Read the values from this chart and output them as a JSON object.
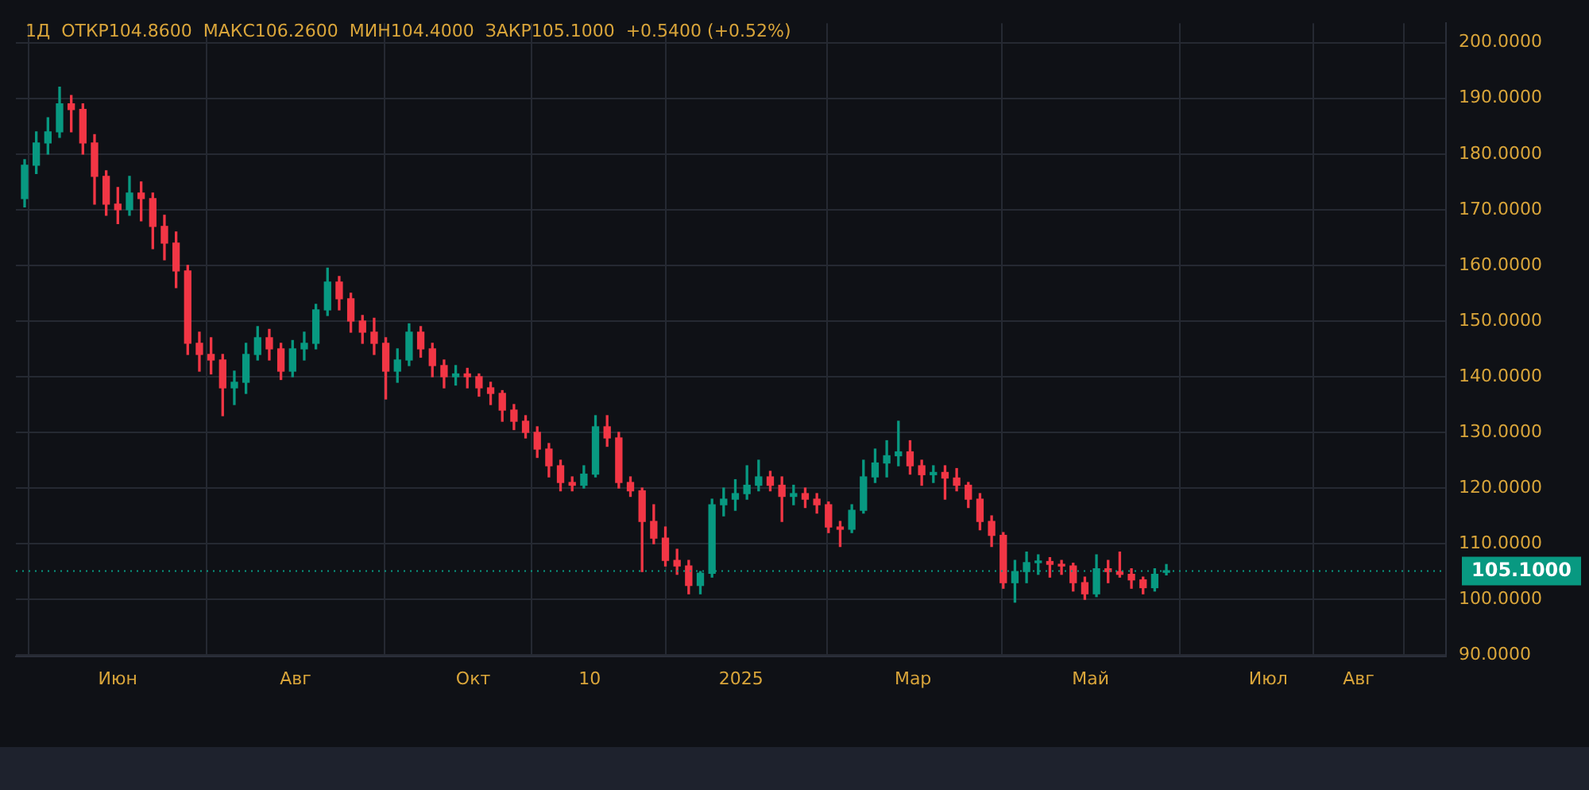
{
  "chart_data": {
    "type": "candlestick",
    "title": "1Д  ОТКР104.8600  МАКС106.2600  МИН104.4000  ЗАКР105.1000  +0.5400 (+0.52%)",
    "x": [
      "2024-04-30",
      "2024-05-04",
      "2024-05-08",
      "2024-05-12",
      "2024-05-16",
      "2024-05-20",
      "2024-05-24",
      "2024-05-28",
      "2024-06-01",
      "2024-06-05",
      "2024-06-09",
      "2024-06-13",
      "2024-06-17",
      "2024-06-21",
      "2024-06-25",
      "2024-06-29",
      "2024-07-03",
      "2024-07-07",
      "2024-07-11",
      "2024-07-15",
      "2024-07-19",
      "2024-07-23",
      "2024-07-27",
      "2024-07-31",
      "2024-08-04",
      "2024-08-08",
      "2024-08-12",
      "2024-08-16",
      "2024-08-20",
      "2024-08-24",
      "2024-08-28",
      "2024-09-01",
      "2024-09-05",
      "2024-09-09",
      "2024-09-13",
      "2024-09-17",
      "2024-09-21",
      "2024-09-25",
      "2024-09-29",
      "2024-10-03",
      "2024-10-07",
      "2024-10-11",
      "2024-10-15",
      "2024-10-19",
      "2024-10-23",
      "2024-10-27",
      "2024-10-31",
      "2024-11-04",
      "2024-11-08",
      "2024-11-12",
      "2024-11-16",
      "2024-11-20",
      "2024-11-24",
      "2024-11-28",
      "2024-12-02",
      "2024-12-06",
      "2024-12-10",
      "2024-12-14",
      "2024-12-18",
      "2024-12-22",
      "2024-12-26",
      "2024-12-30",
      "2025-01-03",
      "2025-01-07",
      "2025-01-11",
      "2025-01-15",
      "2025-01-19",
      "2025-01-23",
      "2025-01-27",
      "2025-01-31",
      "2025-02-04",
      "2025-02-08",
      "2025-02-12",
      "2025-02-16",
      "2025-02-20",
      "2025-02-24",
      "2025-02-28",
      "2025-03-04",
      "2025-03-08",
      "2025-03-12",
      "2025-03-16",
      "2025-03-20",
      "2025-03-24",
      "2025-03-28",
      "2025-04-01",
      "2025-04-05",
      "2025-04-09",
      "2025-04-13",
      "2025-04-17",
      "2025-04-21",
      "2025-04-25",
      "2025-04-29",
      "2025-05-03",
      "2025-05-07",
      "2025-05-11",
      "2025-05-15",
      "2025-05-19",
      "2025-05-23",
      "2025-05-27"
    ],
    "ohlc": [
      [
        172,
        179,
        170.5,
        178
      ],
      [
        178,
        184,
        176.5,
        182
      ],
      [
        182,
        186.5,
        180,
        184
      ],
      [
        184,
        192,
        183,
        189
      ],
      [
        189,
        190.5,
        184,
        188
      ],
      [
        188,
        189,
        180,
        182
      ],
      [
        182,
        183.5,
        171,
        176
      ],
      [
        176,
        177,
        169,
        171
      ],
      [
        171,
        174,
        167.5,
        170
      ],
      [
        170,
        176,
        169,
        173
      ],
      [
        173,
        175,
        168,
        172
      ],
      [
        172,
        173,
        163,
        167
      ],
      [
        167,
        169,
        161,
        164
      ],
      [
        164,
        166,
        156,
        159
      ],
      [
        159,
        160,
        144,
        146
      ],
      [
        146,
        148,
        141,
        144
      ],
      [
        144,
        147,
        140.5,
        143
      ],
      [
        143,
        144,
        133,
        138
      ],
      [
        138,
        141,
        135,
        139
      ],
      [
        139,
        146,
        137,
        144
      ],
      [
        144,
        149,
        143,
        147
      ],
      [
        147,
        148.5,
        143,
        145
      ],
      [
        145,
        146,
        139.5,
        141
      ],
      [
        141,
        146.5,
        140,
        145
      ],
      [
        145,
        148,
        143,
        146
      ],
      [
        146,
        153,
        145,
        152
      ],
      [
        152,
        159.5,
        151,
        157
      ],
      [
        157,
        158,
        152,
        154
      ],
      [
        154,
        155,
        148,
        150
      ],
      [
        150,
        151,
        146,
        148
      ],
      [
        148,
        150.5,
        144,
        146
      ],
      [
        146,
        147,
        136,
        141
      ],
      [
        141,
        145,
        139,
        143
      ],
      [
        143,
        149.5,
        142,
        148
      ],
      [
        148,
        149,
        143.5,
        145
      ],
      [
        145,
        146,
        140,
        142
      ],
      [
        142,
        143,
        138,
        140
      ],
      [
        140,
        142,
        138.5,
        140.5
      ],
      [
        140.5,
        141.5,
        138,
        140
      ],
      [
        140,
        140.5,
        136.5,
        138
      ],
      [
        138,
        139,
        135,
        137
      ],
      [
        137,
        137.5,
        132,
        134
      ],
      [
        134,
        135,
        130.5,
        132
      ],
      [
        132,
        133,
        129,
        130
      ],
      [
        130,
        131,
        125.5,
        127
      ],
      [
        127,
        128,
        122,
        124
      ],
      [
        124,
        125,
        119.5,
        121
      ],
      [
        121,
        122,
        119.5,
        120.5
      ],
      [
        120.5,
        124,
        120,
        122.5
      ],
      [
        122.5,
        133,
        122,
        131
      ],
      [
        131,
        133,
        127.5,
        129
      ],
      [
        129,
        130,
        120,
        121
      ],
      [
        121,
        122,
        118.5,
        119.5
      ],
      [
        119.5,
        120,
        105,
        114
      ],
      [
        114,
        117,
        110,
        111
      ],
      [
        111,
        113,
        106,
        107
      ],
      [
        107,
        109,
        104.5,
        106
      ],
      [
        106,
        107,
        101,
        102.5
      ],
      [
        102.5,
        105,
        101,
        104.7
      ],
      [
        104.7,
        118,
        104,
        117
      ],
      [
        117,
        120,
        115,
        118
      ],
      [
        118,
        121.5,
        116,
        119
      ],
      [
        119,
        124,
        118,
        120.5
      ],
      [
        120.5,
        125,
        119.5,
        122
      ],
      [
        122,
        123,
        119.5,
        120.5
      ],
      [
        120.5,
        122,
        114,
        118.5
      ],
      [
        118.5,
        120.5,
        117,
        119
      ],
      [
        119,
        120,
        116.5,
        118
      ],
      [
        118,
        119,
        115.5,
        117
      ],
      [
        117,
        117.5,
        112,
        113
      ],
      [
        113,
        114,
        109.5,
        112.6
      ],
      [
        112.6,
        117,
        112,
        116
      ],
      [
        116,
        125,
        115.5,
        122
      ],
      [
        122,
        127,
        121,
        124.5
      ],
      [
        124.5,
        128.5,
        122,
        125.8
      ],
      [
        125.8,
        132,
        124,
        126.5
      ],
      [
        126.5,
        128.5,
        122.5,
        124
      ],
      [
        124,
        125,
        120.5,
        122.4
      ],
      [
        122.4,
        124,
        121,
        122.8
      ],
      [
        122.8,
        124,
        118,
        121.8
      ],
      [
        121.8,
        123.5,
        119.5,
        120.5
      ],
      [
        120.5,
        121,
        116.5,
        118
      ],
      [
        118,
        119,
        112.5,
        114
      ],
      [
        114,
        115,
        109.5,
        111.5
      ],
      [
        111.5,
        112,
        102,
        103
      ],
      [
        103,
        107,
        99.5,
        105
      ],
      [
        105,
        108.5,
        103,
        106.6
      ],
      [
        106.6,
        108,
        104.5,
        106.8
      ],
      [
        106.8,
        107.5,
        104,
        106.3
      ],
      [
        106.3,
        107,
        104.5,
        106
      ],
      [
        106,
        106.5,
        101.5,
        103
      ],
      [
        103,
        104,
        100,
        101
      ],
      [
        101,
        108,
        100.5,
        105.5
      ],
      [
        105.5,
        107,
        103,
        105
      ],
      [
        105,
        108.5,
        104,
        104.5
      ],
      [
        104.5,
        105.5,
        102,
        103.5
      ],
      [
        103.5,
        104,
        101,
        102.1
      ],
      [
        102.1,
        105.5,
        101.5,
        104.5
      ],
      [
        104.86,
        106.26,
        104.4,
        105.1
      ]
    ],
    "colors": [
      "#089981",
      "#089981",
      "#089981",
      "#089981",
      "#f23645",
      "#f23645",
      "#f23645",
      "#f23645",
      "#f23645",
      "#089981",
      "#f23645",
      "#f23645",
      "#f23645",
      "#f23645",
      "#f23645",
      "#f23645",
      "#f23645",
      "#f23645",
      "#089981",
      "#089981",
      "#089981",
      "#f23645",
      "#f23645",
      "#089981",
      "#089981",
      "#089981",
      "#089981",
      "#f23645",
      "#f23645",
      "#f23645",
      "#f23645",
      "#f23645",
      "#089981",
      "#089981",
      "#f23645",
      "#f23645",
      "#f23645",
      "#089981",
      "#f23645",
      "#f23645",
      "#f23645",
      "#f23645",
      "#f23645",
      "#f23645",
      "#f23645",
      "#f23645",
      "#f23645",
      "#f23645",
      "#089981",
      "#089981",
      "#f23645",
      "#f23645",
      "#f23645",
      "#f23645",
      "#f23645",
      "#f23645",
      "#f23645",
      "#f23645",
      "#089981",
      "#089981",
      "#089981",
      "#089981",
      "#089981",
      "#089981",
      "#f23645",
      "#f23645",
      "#089981",
      "#f23645",
      "#f23645",
      "#f23645",
      "#f23645",
      "#089981",
      "#089981",
      "#089981",
      "#089981",
      "#089981",
      "#f23645",
      "#f23645",
      "#089981",
      "#f23645",
      "#f23645",
      "#f23645",
      "#f23645",
      "#f23645",
      "#f23645",
      "#089981",
      "#089981",
      "#089981",
      "#f23645",
      "#f23645",
      "#f23645",
      "#f23645",
      "#089981",
      "#f23645",
      "#f23645",
      "#f23645",
      "#f23645",
      "#089981",
      "#089981"
    ],
    "xlim": [
      "2024-04-27",
      "2025-08-31"
    ],
    "xticks": [
      {
        "value": "2024-06",
        "label": "Июн"
      },
      {
        "value": "2024-08",
        "label": "Авг"
      },
      {
        "value": "2024-10",
        "label": "Окт"
      },
      {
        "value": "2024-11-10",
        "label": "10"
      },
      {
        "value": "2025",
        "label": "2025"
      },
      {
        "value": "2025-03",
        "label": "Мар"
      },
      {
        "value": "2025-05",
        "label": "Май"
      },
      {
        "value": "2025-07",
        "label": "Июл"
      },
      {
        "value": "2025-08",
        "label": "Авг"
      }
    ],
    "ylim": [
      89.8,
      203.5
    ],
    "yticks": [
      {
        "value": 90,
        "label": "90.0000"
      },
      {
        "value": 100,
        "label": "100.0000"
      },
      {
        "value": 110,
        "label": "110.0000"
      },
      {
        "value": 120,
        "label": "120.0000"
      },
      {
        "value": 130,
        "label": "130.0000"
      },
      {
        "value": 140,
        "label": "140.0000"
      },
      {
        "value": 150,
        "label": "150.0000"
      },
      {
        "value": 160,
        "label": "160.0000"
      },
      {
        "value": 170,
        "label": "170.0000"
      },
      {
        "value": 180,
        "label": "180.0000"
      },
      {
        "value": 190,
        "label": "190.0000"
      },
      {
        "value": 200,
        "label": "200.0000"
      }
    ],
    "ref_lines": [
      {
        "axis": "y",
        "value": 105.1,
        "label": "105.1000",
        "color": "#089981",
        "line_style": "dotted"
      }
    ],
    "grid": true,
    "legend": false
  }
}
